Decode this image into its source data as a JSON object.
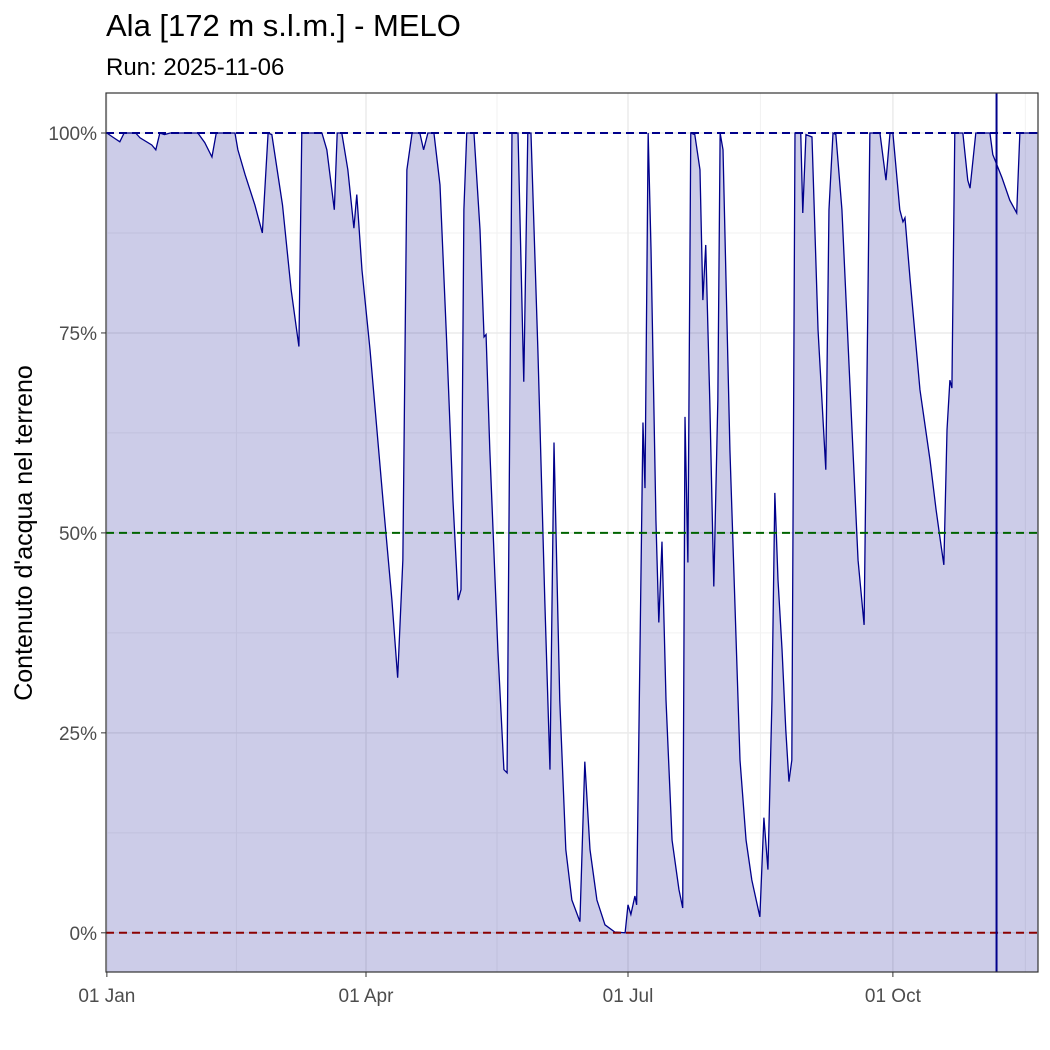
{
  "chart_data": {
    "type": "area",
    "title": "Ala [172 m s.l.m.] - MELO",
    "subtitle": "Run: 2025-11-06",
    "y_label": "Contenuto d'acqua nel terreno",
    "color": "#00008b",
    "fill_color": "#00008b",
    "grid": true,
    "xlim": [
      -0.3,
      323.4
    ],
    "xticks": [
      {
        "value": 0,
        "label": "01 Jan"
      },
      {
        "value": 90,
        "label": "01 Apr"
      },
      {
        "value": 181,
        "label": "01 Jul"
      },
      {
        "value": 273,
        "label": "01 Oct"
      }
    ],
    "ylim": [
      -4.9,
      105
    ],
    "yticks": [
      {
        "value": 0,
        "label": "0%"
      },
      {
        "value": 25,
        "label": "25%"
      },
      {
        "value": 50,
        "label": "50%"
      },
      {
        "value": 75,
        "label": "75%"
      },
      {
        "value": 100,
        "label": "100%"
      }
    ],
    "hlines": [
      {
        "value": 100,
        "color": "#00008b"
      },
      {
        "value": 50,
        "color": "#006400"
      },
      {
        "value": 0,
        "color": "#8b0000"
      }
    ],
    "vline": {
      "value": 309,
      "color": "#00008b"
    },
    "x": [
      0,
      2,
      4.5,
      6,
      10,
      11.5,
      15.6,
      17,
      18.4,
      20,
      22,
      31.6,
      34,
      36.5,
      38,
      44.5,
      45.5,
      48,
      51.4,
      54,
      56,
      57.3,
      61,
      64,
      66.7,
      67.7,
      74.7,
      76.4,
      79,
      80,
      81.6,
      83.7,
      85.8,
      86.8,
      88.6,
      91.4,
      95.9,
      99,
      101,
      102.8,
      104.2,
      106,
      108.7,
      110,
      111.5,
      113.6,
      115.7,
      118,
      120.2,
      122,
      123,
      124,
      125,
      127.5,
      129.6,
      131,
      131.7,
      133,
      135.8,
      137.9,
      139,
      140.7,
      142.8,
      144.8,
      146.2,
      147.3,
      149.7,
      152.1,
      153.9,
      155.3,
      157.3,
      159.4,
      161.5,
      164.3,
      166,
      167.8,
      170.2,
      173,
      176.4,
      180,
      181,
      182,
      183.4,
      184,
      186.2,
      186.9,
      188,
      189,
      190.7,
      191.7,
      192.8,
      194.2,
      196.3,
      198.7,
      200,
      200.8,
      201.8,
      202.8,
      204.2,
      206,
      207,
      208,
      209.4,
      210.8,
      212.2,
      213,
      214,
      216.4,
      219.9,
      222,
      224,
      226.8,
      228.2,
      229.6,
      231,
      232,
      233.1,
      234.5,
      235.8,
      236.9,
      237.9,
      239,
      241,
      241.7,
      242.8,
      244.9,
      247,
      249.7,
      250.8,
      252.2,
      253.2,
      255.3,
      258.8,
      260.9,
      263,
      265,
      268.5,
      270.6,
      272,
      273,
      275.4,
      276.5,
      277.2,
      279,
      282.4,
      285.9,
      288,
      289.7,
      290.7,
      291.8,
      292.8,
      293.5,
      294.5,
      297.3,
      299,
      299.8,
      301.8,
      306.7,
      307.7,
      310.9,
      313.6,
      316,
      317.1,
      323.4
    ],
    "values": [
      100,
      99.5,
      98.9,
      100,
      100,
      99.4,
      98.5,
      97.9,
      100,
      99.8,
      100,
      100,
      98.8,
      97,
      100,
      100,
      97.9,
      94.8,
      91,
      87.5,
      100,
      99.8,
      91,
      80.4,
      73.3,
      100,
      100,
      97.9,
      90.4,
      100,
      100,
      95.4,
      88.1,
      92.3,
      82.9,
      72.9,
      54.1,
      41.6,
      31.9,
      46.6,
      95.4,
      100,
      100,
      97.9,
      100,
      100,
      93.5,
      74.1,
      54.1,
      41.6,
      42.9,
      90.4,
      100,
      100,
      87.9,
      74.5,
      74.8,
      60.4,
      35.4,
      20.4,
      20,
      100,
      100,
      68.9,
      100,
      100,
      72.9,
      41.6,
      20.4,
      61.3,
      29.1,
      10.4,
      4.1,
      1.4,
      21.4,
      10.4,
      4.1,
      1,
      0.1,
      0,
      3.5,
      2.3,
      4.6,
      3.5,
      63.8,
      55.6,
      100,
      85.4,
      51.6,
      38.8,
      48.9,
      29.1,
      11.6,
      5.4,
      3.1,
      64.5,
      46.3,
      100,
      99.8,
      95.4,
      79.1,
      86,
      66.6,
      43.3,
      66.6,
      100,
      97.9,
      60.4,
      21.6,
      11.6,
      6.6,
      2,
      14.4,
      7.9,
      29.1,
      55,
      44.1,
      35.4,
      25.4,
      18.9,
      21.6,
      100,
      100,
      90,
      99.8,
      99.5,
      75.4,
      57.9,
      90.4,
      100,
      99.8,
      90.4,
      62.9,
      46.6,
      38.5,
      100,
      100,
      94.1,
      100,
      100,
      90.4,
      88.9,
      89.4,
      81.6,
      67.9,
      59.1,
      52.9,
      48.5,
      46,
      62.9,
      69.1,
      68.1,
      100,
      100,
      94.1,
      93.1,
      100,
      100,
      97.3,
      94.4,
      91.6,
      90,
      100,
      100
    ]
  }
}
